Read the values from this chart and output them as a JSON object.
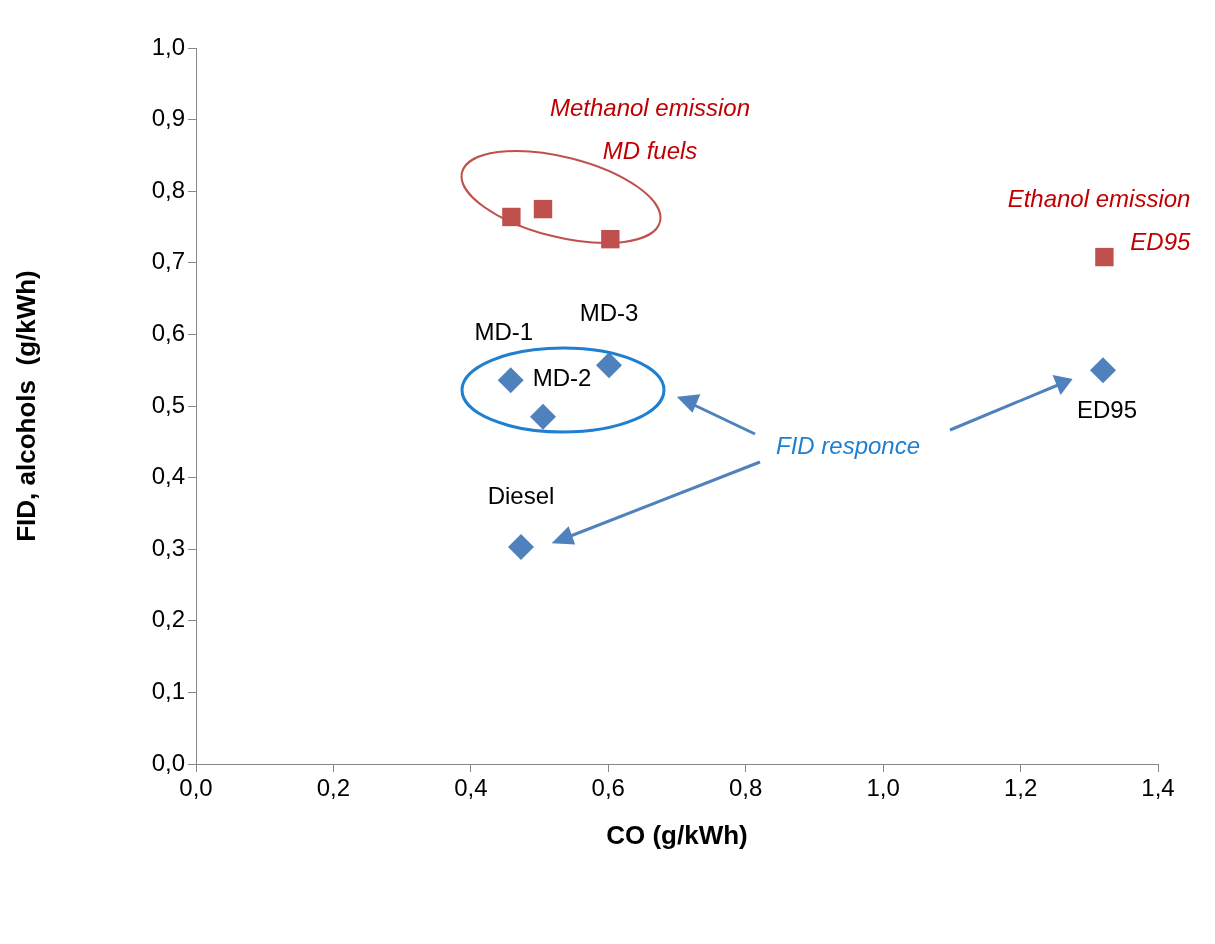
{
  "chart_data": {
    "type": "scatter",
    "xlabel": "CO (g/kWh)",
    "ylabel": "FID, alcohols  (g/kWh)",
    "xlim": [
      0,
      1.4
    ],
    "xticks": [
      {
        "value": 0,
        "label": "0,0"
      },
      {
        "value": 0.2,
        "label": "0,2"
      },
      {
        "value": 0.4,
        "label": "0,4"
      },
      {
        "value": 0.6,
        "label": "0,6"
      },
      {
        "value": 0.8,
        "label": "0,8"
      },
      {
        "value": 1.0,
        "label": "1,0"
      },
      {
        "value": 1.2,
        "label": "1,2"
      },
      {
        "value": 1.4,
        "label": "1,4"
      }
    ],
    "ylim": [
      0,
      1
    ],
    "yticks": [
      {
        "value": 0,
        "label": "0,0"
      },
      {
        "value": 0.1,
        "label": "0,1"
      },
      {
        "value": 0.2,
        "label": "0,2"
      },
      {
        "value": 0.3,
        "label": "0,3"
      },
      {
        "value": 0.4,
        "label": "0,4"
      },
      {
        "value": 0.5,
        "label": "0,5"
      },
      {
        "value": 0.6,
        "label": "0,6"
      },
      {
        "value": 0.7,
        "label": "0,7"
      },
      {
        "value": 0.8,
        "label": "0,8"
      },
      {
        "value": 0.9,
        "label": "0,9"
      },
      {
        "value": 1.0,
        "label": "1,0"
      }
    ],
    "grid": false,
    "legend": false,
    "series": [
      {
        "color": "#4f81bd",
        "marker": "diamond",
        "x": [
          0.458,
          0.505,
          0.601,
          0.473,
          1.32
        ],
        "values": [
          0.536,
          0.485,
          0.557,
          0.303,
          0.55
        ]
      },
      {
        "color": "#c0504d",
        "marker": "square",
        "x": [
          0.459,
          0.505,
          0.603,
          1.322
        ],
        "values": [
          0.764,
          0.775,
          0.733,
          0.708
        ]
      }
    ],
    "annotations": [
      {
        "text": "MD-1",
        "x": 0.458,
        "y": 0.536
      },
      {
        "text": "MD-2",
        "x": 0.505,
        "y": 0.485
      },
      {
        "text": "MD-3",
        "x": 0.601,
        "y": 0.557
      },
      {
        "text": "Diesel",
        "x": 0.473,
        "y": 0.303
      },
      {
        "text": "ED95",
        "x": 1.32,
        "y": 0.55
      },
      {
        "text": "Methanol emission\nMD fuels",
        "x": 0.505,
        "y": 0.775
      },
      {
        "text": "Ethanol emission\nED95",
        "x": 1.322,
        "y": 0.708
      },
      "FID responce"
    ]
  }
}
